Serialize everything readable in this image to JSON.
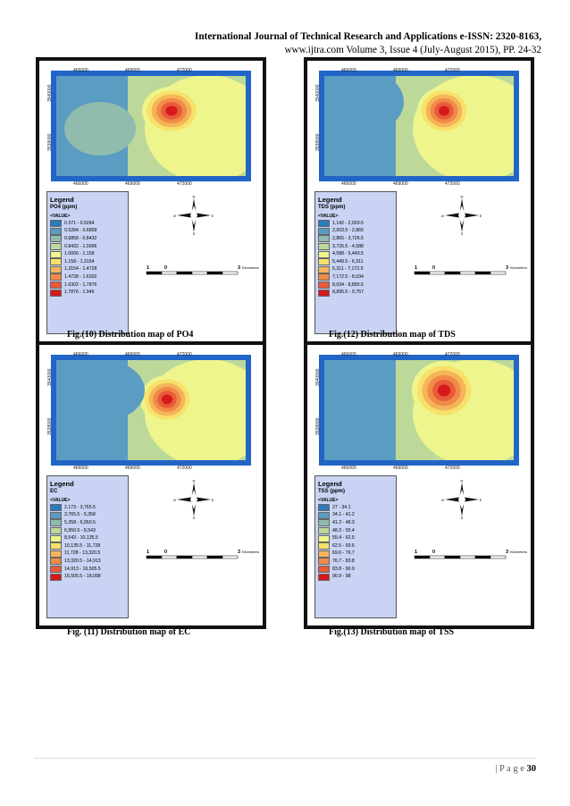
{
  "header": {
    "line1": "International Journal of Technical Research and Applications e-ISSN: 2320-8163,",
    "line2": "www.ijtra.com Volume 3, Issue 4 (July-August 2015), PP. 24-32"
  },
  "common": {
    "value_label": "<VALUE>",
    "scale_ticks": [
      "1",
      "0",
      "3"
    ],
    "scale_unit": "Kilometers",
    "top_ticks": [
      "466000",
      "469000",
      "472000"
    ],
    "bottom_ticks": [
      "466000",
      "469000",
      "472000"
    ],
    "side_ticks": [
      "3540000",
      "3538000"
    ],
    "compass": [
      "N",
      "S",
      "E",
      "W"
    ]
  },
  "figures": [
    {
      "legend_title": "Legend",
      "variable": "PO4 (ppm)",
      "caption": "Fig.(10) Distribution map of PO4",
      "classes": [
        "0.371 - 0.5284",
        "0.5284 - 0.6858",
        "0.6858 - 0.8432",
        "0.8432 - 1.0006",
        "1.0006 - 1.158",
        "1.158 - 1.3154",
        "1.3154 - 1.4728",
        "1.4728 - 1.6302",
        "1.6302 - 1.7876",
        "1.7876 - 1.945"
      ]
    },
    {
      "legend_title": "Legend",
      "variable": "TDS (ppm)",
      "caption": "Fig.(12) Distribution map of TDS",
      "classes": [
        "1,142 - 2,003.5",
        "2,003.5 - 2,865",
        "2,865 - 3,726.5",
        "3,726.5 - 4,588",
        "4,588 - 5,449.5",
        "5,449.5 - 6,311",
        "6,311 - 7,172.5",
        "7,172.5 - 8,034",
        "8,034 - 8,895.5",
        "8,895.5 - 9,757"
      ]
    },
    {
      "legend_title": "Legend",
      "variable": "EC",
      "caption": "Fig. (11) Distribution map of EC",
      "classes": [
        "2,173 - 3,765.5",
        "3,765.5 - 5,358",
        "5,358 - 6,950.5",
        "6,950.5 - 8,543",
        "8,543 - 10,135.5",
        "10,135.5 - 11,728",
        "11,728 - 13,320.5",
        "13,320.5 - 14,913",
        "14,913 - 16,505.5",
        "16,505.5 - 18,098"
      ]
    },
    {
      "legend_title": "Legend",
      "variable": "TSS (ppm)",
      "caption": "Fig.(13) Distribution map of TSS",
      "classes": [
        "27 - 34.1",
        "34.1 - 41.2",
        "41.2 - 48.3",
        "48.3 - 55.4",
        "55.4 - 62.5",
        "62.5 - 69.6",
        "69.6 - 76.7",
        "76.7 - 83.8",
        "83.8 - 90.9",
        "90.9 - 98"
      ]
    }
  ],
  "colors": [
    "#2b7bba",
    "#5b9cc2",
    "#8fbcac",
    "#bcd99a",
    "#eef58c",
    "#f7e16a",
    "#f6b45a",
    "#f08a47",
    "#e85a3a",
    "#d7191c"
  ],
  "footer": {
    "prefix": "| P a g e ",
    "number": "30"
  }
}
